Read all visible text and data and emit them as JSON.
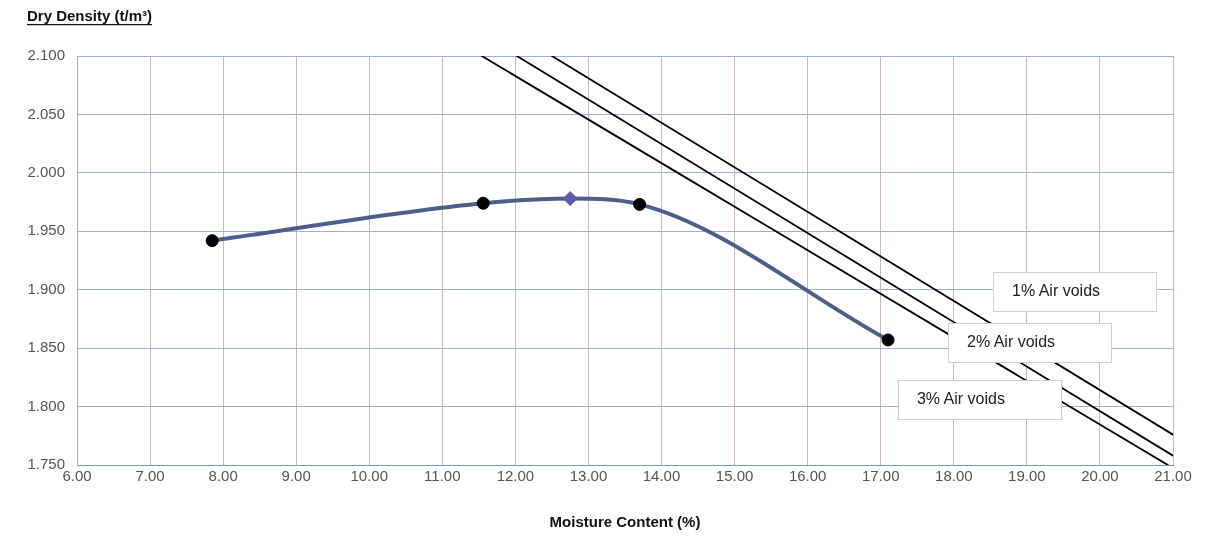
{
  "chart_data": {
    "type": "line",
    "xlabel": "Moisture Content (%)",
    "ylabel": "Dry Density (t/m³)",
    "xlim": [
      6,
      21
    ],
    "ylim": [
      1.75,
      2.1
    ],
    "xticks": [
      {
        "value": 6,
        "label": "6.00"
      },
      {
        "value": 7,
        "label": "7.00"
      },
      {
        "value": 8,
        "label": "8.00"
      },
      {
        "value": 9,
        "label": "9.00"
      },
      {
        "value": 10,
        "label": "10.00"
      },
      {
        "value": 11,
        "label": "11.00"
      },
      {
        "value": 12,
        "label": "12.00"
      },
      {
        "value": 13,
        "label": "13.00"
      },
      {
        "value": 14,
        "label": "14.00"
      },
      {
        "value": 15,
        "label": "15.00"
      },
      {
        "value": 16,
        "label": "16.00"
      },
      {
        "value": 17,
        "label": "17.00"
      },
      {
        "value": 18,
        "label": "18.00"
      },
      {
        "value": 19,
        "label": "19.00"
      },
      {
        "value": 20,
        "label": "20.00"
      },
      {
        "value": 21,
        "label": "21.00"
      }
    ],
    "yticks": [
      {
        "value": 1.75,
        "label": "1.750"
      },
      {
        "value": 1.8,
        "label": "1.800"
      },
      {
        "value": 1.85,
        "label": "1.850"
      },
      {
        "value": 1.9,
        "label": "1.900"
      },
      {
        "value": 1.95,
        "label": "1.950"
      },
      {
        "value": 2,
        "label": "2.000"
      },
      {
        "value": 2.05,
        "label": "2.050"
      },
      {
        "value": 2.1,
        "label": "2.100"
      }
    ],
    "grid": true,
    "legend": false,
    "series": [
      {
        "type": "line",
        "color": "#4a5f8c",
        "marker": "none",
        "x": [
          7.85,
          11.56,
          12.75,
          13.7,
          17.1
        ],
        "values": [
          1.942,
          1.974,
          1.978,
          1.973,
          1.857
        ]
      },
      {
        "type": "scatter",
        "color": "#000000",
        "marker": "circle",
        "x": [
          7.85,
          11.56,
          13.7,
          17.1
        ],
        "values": [
          1.942,
          1.974,
          1.973,
          1.857
        ]
      },
      {
        "type": "scatter",
        "color": "#5b5ba8",
        "marker": "diamond",
        "x": [
          12.75
        ],
        "values": [
          1.978
        ]
      },
      {
        "type": "line",
        "name": "1% Air voids",
        "color": "#000000",
        "marker": "none",
        "x": [
          12.5,
          21
        ],
        "values": [
          2.1,
          1.776
        ]
      },
      {
        "type": "line",
        "name": "2% Air voids",
        "color": "#000000",
        "marker": "none",
        "x": [
          12.02,
          21
        ],
        "values": [
          2.1,
          1.758
        ]
      },
      {
        "type": "line",
        "name": "3% Air voids",
        "color": "#000000",
        "marker": "none",
        "x": [
          11.54,
          20.93
        ],
        "values": [
          2.1,
          1.75
        ]
      }
    ]
  }
}
